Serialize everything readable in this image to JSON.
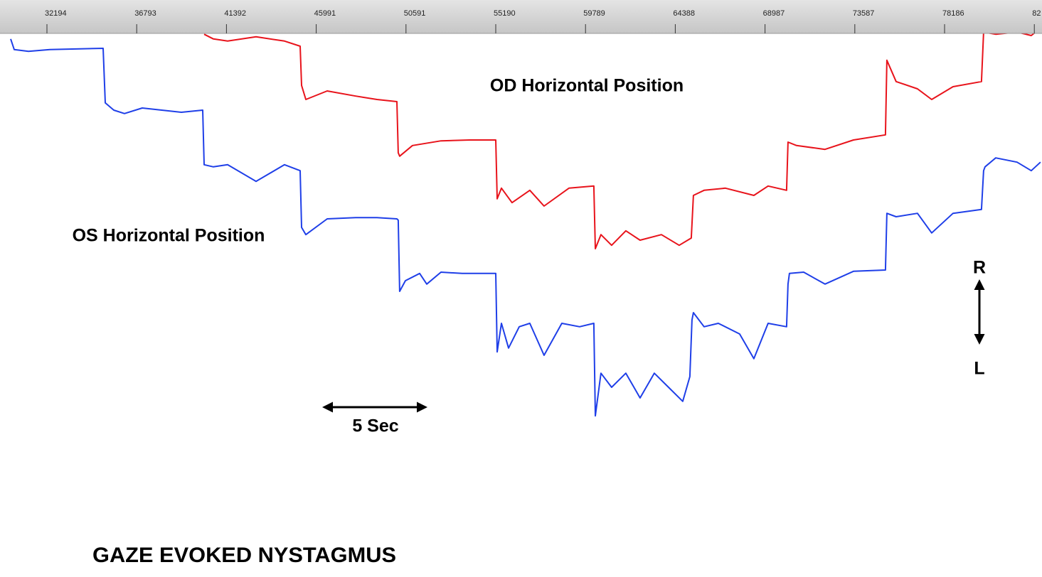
{
  "chart_data": {
    "type": "line",
    "title": "GAZE EVOKED NYSTAGMUS",
    "annotations": [
      "5 Sec",
      "R",
      "L"
    ],
    "xlim": [
      29789,
      83178
    ],
    "ylim": [
      -27.5,
      102.5
    ],
    "xticks": [
      32194,
      36793,
      41392,
      45991,
      50591,
      55190,
      59789,
      64388,
      68987,
      73587,
      78186,
      {
        "value": 82785,
        "label": "82"
      }
    ],
    "series": [
      {
        "name": "OD Horizontal Position",
        "color": "#e8131b",
        "x": [
          40247,
          40721,
          41450,
          42907,
          44365,
          45167,
          45240,
          45459,
          46552,
          48009,
          49102,
          50123,
          50195,
          50268,
          50924,
          52382,
          53840,
          55188,
          55261,
          55480,
          56026,
          56937,
          57666,
          58941,
          60217,
          60290,
          60581,
          61128,
          61857,
          62585,
          63679,
          64590,
          65209,
          65318,
          65865,
          66958,
          68416,
          69144,
          70092,
          70165,
          70602,
          72059,
          73517,
          75157,
          75230,
          75704,
          76796,
          77525,
          78618,
          80075,
          80185,
          80805,
          81898,
          82627,
          83101
        ],
        "values": [
          99.8,
          98.7,
          98.2,
          99.2,
          98.2,
          97,
          87.8,
          84.5,
          86.5,
          85.3,
          84.5,
          84,
          72,
          71.2,
          73.7,
          74.8,
          75,
          75,
          61.2,
          63.7,
          60.3,
          63.2,
          59.5,
          63.7,
          64.2,
          49.5,
          52.8,
          50.3,
          53.7,
          51.5,
          52.8,
          50.3,
          52,
          62,
          63.2,
          63.7,
          62,
          64.2,
          63.2,
          74.5,
          73.7,
          72.8,
          75,
          76.2,
          93.7,
          88.7,
          87,
          84.5,
          87.5,
          88.7,
          100.3,
          99.8,
          100.3,
          99.5,
          101.2
        ]
      },
      {
        "name": "OS Horizontal Position",
        "color": "#1f3fe8",
        "x": [
          30336,
          30518,
          31247,
          32340,
          35073,
          35182,
          35619,
          36166,
          37077,
          39081,
          40174,
          40247,
          40721,
          41450,
          42907,
          44365,
          45167,
          45240,
          45459,
          46552,
          48009,
          49102,
          50123,
          50195,
          50268,
          50560,
          51289,
          51653,
          52382,
          53475,
          55188,
          55261,
          55480,
          55844,
          56391,
          56937,
          57666,
          58577,
          59488,
          60217,
          60290,
          60581,
          61128,
          61857,
          62585,
          63314,
          64043,
          64772,
          65136,
          65245,
          65318,
          65865,
          66594,
          67687,
          68416,
          69144,
          70092,
          70165,
          70237,
          70966,
          72059,
          73517,
          75157,
          75230,
          75704,
          76796,
          77525,
          78618,
          80075,
          80185,
          80258,
          80805,
          81898,
          82627,
          83101
        ],
        "values": [
          98.7,
          96.2,
          95.8,
          96.2,
          96.5,
          83.7,
          82,
          81.2,
          82.5,
          81.5,
          82,
          69.2,
          68.7,
          69.2,
          65.3,
          69.2,
          67.8,
          54.5,
          52.8,
          56.5,
          56.8,
          56.8,
          56.5,
          56.2,
          39.5,
          42,
          43.7,
          41.2,
          44,
          43.7,
          43.7,
          25.3,
          32,
          26.2,
          31.2,
          32,
          24.5,
          32,
          31.2,
          32,
          10.3,
          20.3,
          17,
          20.3,
          14.5,
          20.3,
          17,
          13.7,
          19.5,
          32.8,
          34.5,
          31.2,
          32,
          29.5,
          23.7,
          32,
          31.2,
          41.2,
          43.7,
          44,
          41.2,
          44.2,
          44.5,
          57.8,
          57,
          57.8,
          53.2,
          57.8,
          58.7,
          67.8,
          68.7,
          70.8,
          69.8,
          67.8,
          69.8
        ]
      }
    ]
  }
}
